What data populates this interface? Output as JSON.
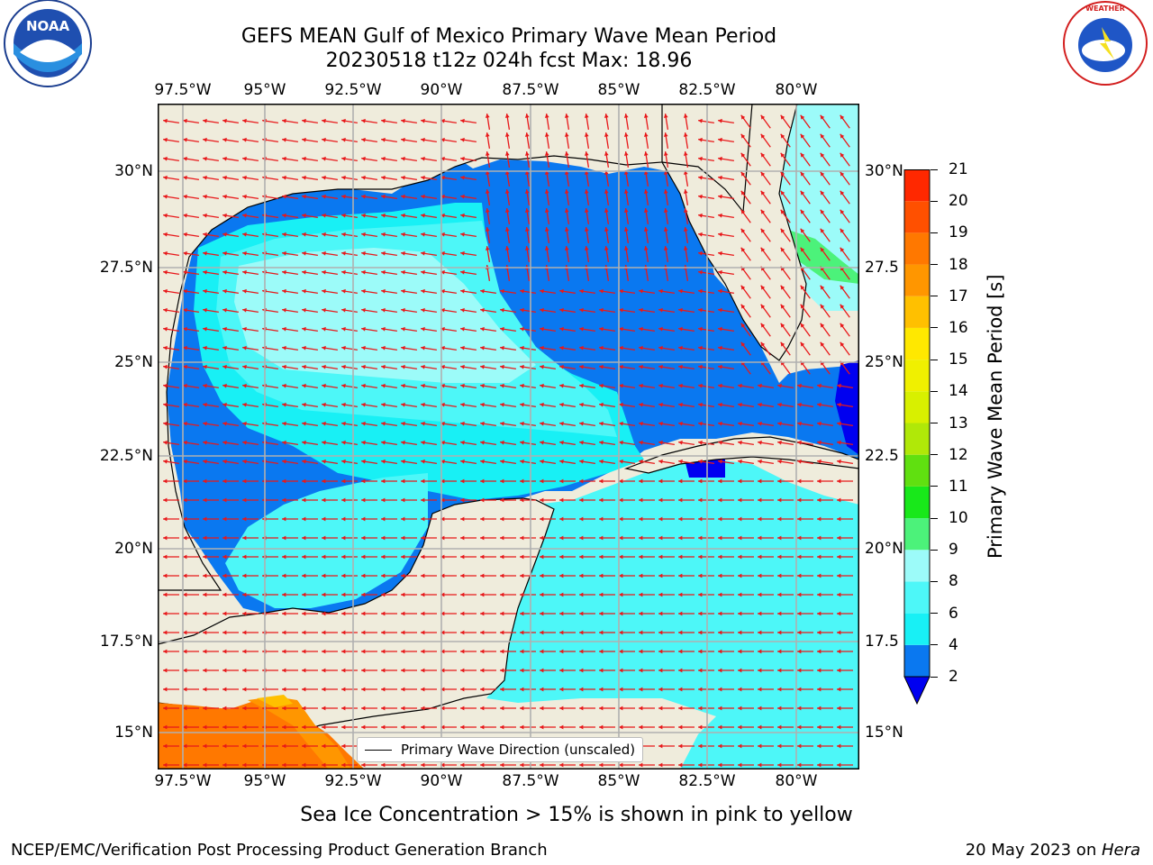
{
  "title": {
    "line1": "GEFS MEAN Gulf of Mexico Primary Wave Mean Period",
    "line2": "20230518 t12z 024h fcst   Max: 18.96"
  },
  "map": {
    "lon_ticks": [
      "97.5°W",
      "95°W",
      "92.5°W",
      "90°W",
      "87.5°W",
      "85°W",
      "82.5°W",
      "80°W"
    ],
    "lat_ticks": [
      "30°N",
      "27.5°N",
      "25°N",
      "22.5°N",
      "20°N",
      "17.5°N",
      "15°N"
    ],
    "lat_ticks_right": [
      "30°N",
      "27.5",
      "25°N",
      "22.5",
      "20°N",
      "17.5",
      "15°N"
    ],
    "legend_label": "Primary Wave Direction (unscaled)",
    "colors": {
      "land": "#efecdc",
      "ocean_2_4": "#0a78f0",
      "ocean_4_6": "#18f0f5",
      "ocean_6_8": "#4df7f8",
      "ocean_8_9": "#9cfbf9",
      "ocean_9_10": "#4cf27a",
      "arrow": "#e8181a"
    }
  },
  "colorbar": {
    "label": "Primary Wave Mean Period [s]",
    "ticks": [
      "2",
      "4",
      "6",
      "8",
      "9",
      "10",
      "11",
      "12",
      "13",
      "14",
      "15",
      "16",
      "17",
      "18",
      "19",
      "20",
      "21"
    ],
    "colors": [
      "#0a78f0",
      "#18f0f5",
      "#4df7f8",
      "#9cfbf9",
      "#4cf27a",
      "#18e81a",
      "#60e010",
      "#b0e808",
      "#d8f000",
      "#f0f000",
      "#ffe800",
      "#ffc000",
      "#ff9600",
      "#ff7800",
      "#ff5000",
      "#ff2800"
    ],
    "under_color": "#0000f0"
  },
  "footer": {
    "note": "Sea Ice Concentration > 15% is shown in pink to yellow",
    "left": "NCEP/EMC/Verification Post Processing Product Generation Branch",
    "date": "20 May 2023 on ",
    "host": "Hera"
  },
  "logos": {
    "left_text": "NOAA",
    "right_text": "NATIONAL WEATHER SERVICE"
  }
}
